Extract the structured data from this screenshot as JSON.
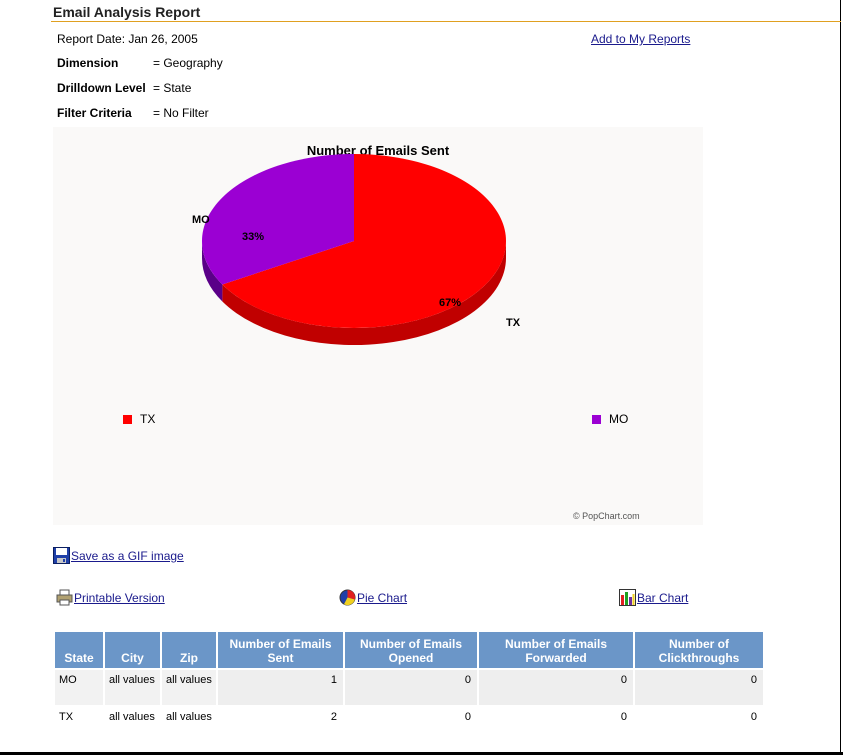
{
  "report": {
    "title": "Email Analysis Report",
    "date_label": "Report Date: Jan 26, 2005",
    "add_link": "Add to My Reports",
    "info": [
      {
        "label": "Dimension",
        "value": "= Geography"
      },
      {
        "label": "Drilldown Level",
        "value": "= State"
      },
      {
        "label": "Filter Criteria",
        "value": "= No Filter"
      }
    ]
  },
  "chart_data": {
    "type": "pie",
    "title": "Number of Emails Sent",
    "slices": [
      {
        "label": "TX",
        "value": 2,
        "percent_label": "67%",
        "color": "#ff0000",
        "side_color": "#c00000"
      },
      {
        "label": "MO",
        "value": 1,
        "percent_label": "33%",
        "color": "#9b00d3",
        "side_color": "#5a0088"
      }
    ],
    "legend": [
      {
        "label": "TX",
        "color": "#ff0000"
      },
      {
        "label": "MO",
        "color": "#9b00d3"
      }
    ],
    "legend_position": "bottom",
    "credit": "© PopChart.com"
  },
  "actions": {
    "save_gif": "Save as a GIF image",
    "printable": "Printable Version",
    "pie_chart": "Pie Chart",
    "bar_chart": "Bar Chart"
  },
  "table": {
    "headers": [
      "State",
      "City",
      "Zip",
      "Number of Emails Sent",
      "Number of Emails Opened",
      "Number of Emails Forwarded",
      "Number of Clickthroughs"
    ],
    "rows": [
      [
        "MO",
        "all values",
        "all values",
        "1",
        "0",
        "0",
        "0"
      ],
      [
        "TX",
        "all values",
        "all values",
        "2",
        "0",
        "0",
        "0"
      ]
    ]
  },
  "colors": {
    "header_bg": "#6b96c8",
    "title_rule": "#e0a020",
    "link": "#1a1a8c"
  }
}
